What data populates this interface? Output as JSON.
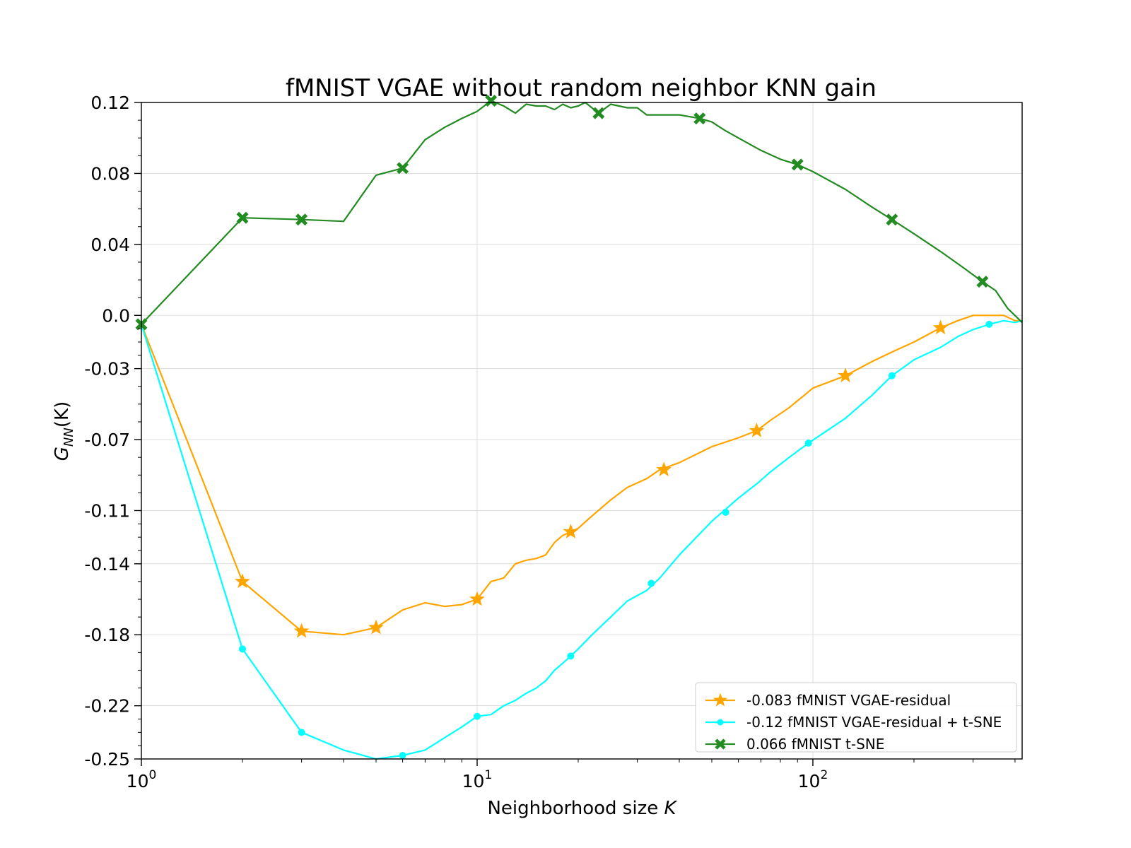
{
  "chart_data": {
    "type": "line",
    "title": "fMNIST VGAE without random neighbor KNN gain",
    "xlabel": "Neighborhood size ",
    "xlabel_var": "K",
    "ylabel": "G",
    "ylabel_sub": "NN",
    "ylabel_tail": "(K)",
    "x_scale": "log",
    "xlim": [
      1,
      420
    ],
    "ylim": [
      -0.25,
      0.12
    ],
    "x_ticks": [
      {
        "value": 1,
        "base": "10",
        "exp": "0"
      },
      {
        "value": 10,
        "base": "10",
        "exp": "1"
      },
      {
        "value": 100,
        "base": "10",
        "exp": "2"
      }
    ],
    "y_ticks": [
      {
        "value": 0.12,
        "label": "0.12"
      },
      {
        "value": 0.08,
        "label": "0.08"
      },
      {
        "value": 0.04,
        "label": "0.04"
      },
      {
        "value": 0.0,
        "label": "0.0"
      },
      {
        "value": -0.03,
        "label": "-0.03"
      },
      {
        "value": -0.07,
        "label": "-0.07"
      },
      {
        "value": -0.11,
        "label": "-0.11"
      },
      {
        "value": -0.14,
        "label": "-0.14"
      },
      {
        "value": -0.18,
        "label": "-0.18"
      },
      {
        "value": -0.22,
        "label": "-0.22"
      },
      {
        "value": -0.25,
        "label": "-0.25"
      }
    ],
    "grid": true,
    "legend_position": "bottom-right",
    "series": [
      {
        "name": "-0.083 fMNIST VGAE-residual",
        "color": "#ffa500",
        "marker": "star",
        "x": [
          1,
          2,
          3,
          4,
          5,
          6,
          7,
          8,
          9,
          10,
          11,
          12,
          13,
          14,
          15,
          16,
          17,
          18,
          19,
          20,
          22,
          25,
          28,
          32,
          35,
          40,
          50,
          60,
          68,
          75,
          85,
          100,
          125,
          150,
          175,
          200,
          240,
          270,
          300,
          340,
          370,
          400,
          420
        ],
        "y": [
          -0.005,
          -0.15,
          -0.178,
          -0.18,
          -0.176,
          -0.166,
          -0.162,
          -0.164,
          -0.163,
          -0.16,
          -0.15,
          -0.148,
          -0.14,
          -0.138,
          -0.137,
          -0.135,
          -0.128,
          -0.124,
          -0.122,
          -0.12,
          -0.113,
          -0.104,
          -0.097,
          -0.092,
          -0.087,
          -0.083,
          -0.074,
          -0.069,
          -0.065,
          -0.059,
          -0.052,
          -0.041,
          -0.034,
          -0.026,
          -0.02,
          -0.015,
          -0.007,
          -0.003,
          0.0,
          0.0,
          0.0,
          -0.003,
          -0.003
        ],
        "marker_x": [
          2,
          3,
          5,
          10,
          19,
          36,
          68,
          125,
          240
        ],
        "marker_y": [
          -0.15,
          -0.178,
          -0.176,
          -0.16,
          -0.122,
          -0.087,
          -0.065,
          -0.034,
          -0.007
        ]
      },
      {
        "name": "-0.12 fMNIST VGAE-residual + t-SNE",
        "color": "#00ffff",
        "marker": "circle",
        "x": [
          1,
          2,
          3,
          4,
          5,
          6,
          7,
          8,
          9,
          10,
          11,
          12,
          13,
          14,
          15,
          16,
          17,
          18,
          19,
          20,
          22,
          25,
          28,
          32,
          35,
          40,
          50,
          60,
          68,
          75,
          85,
          97,
          125,
          150,
          172,
          200,
          240,
          270,
          300,
          335,
          370,
          400,
          420
        ],
        "y": [
          -0.005,
          -0.188,
          -0.235,
          -0.245,
          -0.25,
          -0.248,
          -0.245,
          -0.238,
          -0.232,
          -0.226,
          -0.225,
          -0.22,
          -0.217,
          -0.213,
          -0.21,
          -0.206,
          -0.2,
          -0.196,
          -0.192,
          -0.188,
          -0.18,
          -0.17,
          -0.161,
          -0.155,
          -0.148,
          -0.135,
          -0.116,
          -0.103,
          -0.095,
          -0.088,
          -0.08,
          -0.072,
          -0.058,
          -0.045,
          -0.034,
          -0.025,
          -0.018,
          -0.012,
          -0.008,
          -0.005,
          -0.003,
          -0.004,
          -0.003
        ],
        "marker_x": [
          2,
          3,
          6,
          10,
          19,
          33,
          55,
          97,
          172,
          335
        ],
        "marker_y": [
          -0.188,
          -0.235,
          -0.248,
          -0.226,
          -0.192,
          -0.151,
          -0.111,
          -0.072,
          -0.034,
          -0.005
        ]
      },
      {
        "name": "0.066 fMNIST t-SNE",
        "color": "#228b22",
        "marker": "x",
        "x": [
          1,
          2,
          3,
          4,
          5,
          6,
          7,
          8,
          9,
          10,
          11,
          12,
          13,
          14,
          15,
          16,
          17,
          18,
          19,
          20,
          21,
          23,
          25,
          28,
          30,
          32,
          35,
          40,
          46,
          50,
          55,
          60,
          70,
          80,
          90,
          100,
          125,
          150,
          172,
          200,
          240,
          280,
          320,
          350,
          380,
          420
        ],
        "y": [
          -0.005,
          0.055,
          0.054,
          0.053,
          0.079,
          0.083,
          0.099,
          0.106,
          0.111,
          0.115,
          0.121,
          0.118,
          0.114,
          0.119,
          0.118,
          0.118,
          0.116,
          0.119,
          0.117,
          0.118,
          0.12,
          0.114,
          0.119,
          0.117,
          0.117,
          0.113,
          0.113,
          0.113,
          0.111,
          0.109,
          0.104,
          0.1,
          0.093,
          0.088,
          0.085,
          0.081,
          0.071,
          0.061,
          0.054,
          0.046,
          0.036,
          0.027,
          0.019,
          0.014,
          0.004,
          -0.004
        ],
        "marker_x": [
          1,
          2,
          3,
          6,
          11,
          23,
          46,
          90,
          172,
          320
        ],
        "marker_y": [
          -0.005,
          0.055,
          0.054,
          0.083,
          0.121,
          0.114,
          0.111,
          0.085,
          0.054,
          0.019
        ]
      }
    ]
  }
}
